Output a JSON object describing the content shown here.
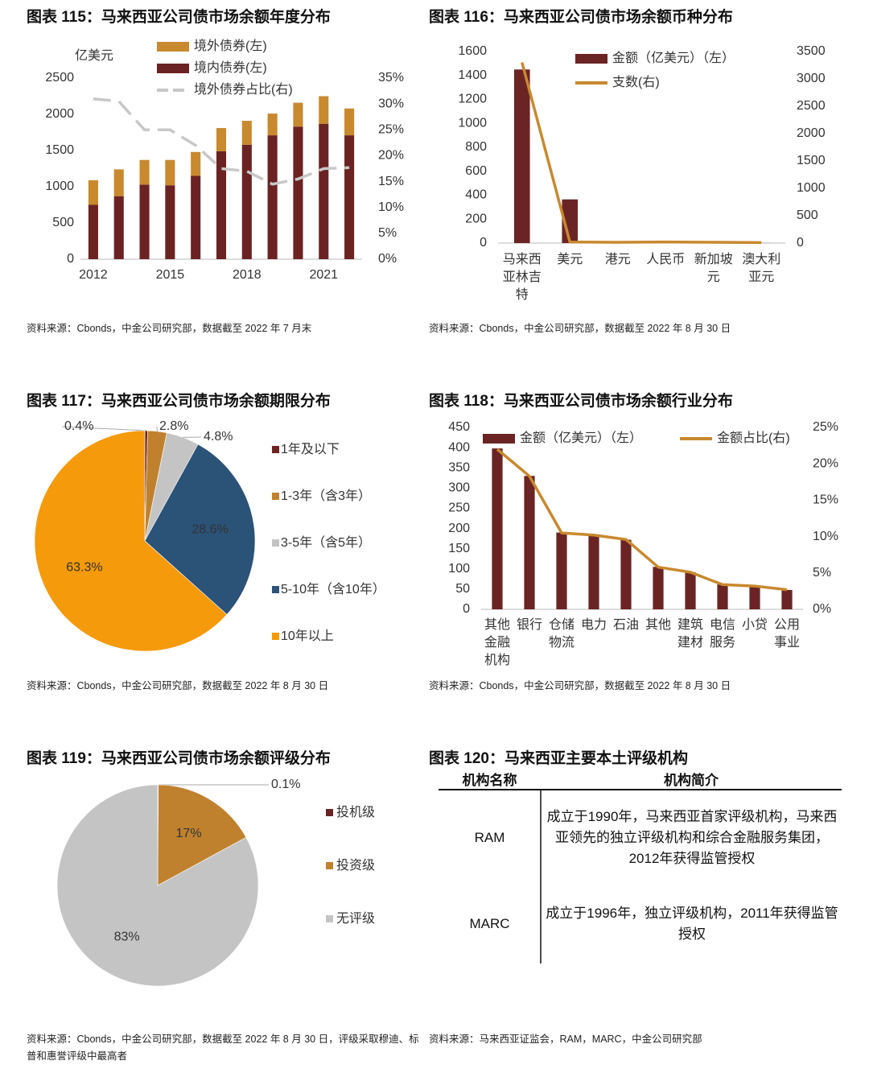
{
  "chart_data": [
    {
      "type": "bar",
      "title": "图表 115：马来西亚公司债市场余额年度分布",
      "y_label": "亿美元",
      "stacked": true,
      "categories": [
        "2012",
        null,
        null,
        "2015",
        null,
        null,
        "2018",
        null,
        null,
        "2021",
        null
      ],
      "series": [
        {
          "name": "境外债券(左)",
          "color": "#c8892f",
          "values": [
            340,
            370,
            340,
            350,
            330,
            320,
            330,
            300,
            330,
            380,
            370
          ]
        },
        {
          "name": "境内债券(左)",
          "color": "#6b2222",
          "values": [
            750,
            870,
            1030,
            1020,
            1150,
            1490,
            1580,
            1710,
            1830,
            1870,
            1710
          ]
        },
        {
          "name": "境外债券占比(右)",
          "type": "line",
          "line_style": "dashed",
          "axis": "y2",
          "color": "#c8c8c8",
          "values": [
            31,
            30.5,
            25,
            25,
            22,
            17.5,
            17,
            14.5,
            15.5,
            17.5,
            17.7
          ]
        }
      ],
      "ylim": [
        0,
        2500
      ],
      "yticks": [
        0,
        500,
        1000,
        1500,
        2000,
        2500
      ],
      "y2lim": [
        0,
        35
      ],
      "y2ticks": [
        {
          "value": 0,
          "label": "0%"
        },
        {
          "value": 5,
          "label": "5%"
        },
        {
          "value": 10,
          "label": "10%"
        },
        {
          "value": 15,
          "label": "15%"
        },
        {
          "value": 20,
          "label": "20%"
        },
        {
          "value": 25,
          "label": "25%"
        },
        {
          "value": 30,
          "label": "30%"
        },
        {
          "value": 35,
          "label": "35%"
        }
      ],
      "source": "资料来源：Cbonds，中金公司研究部，数据截至 2022 年 7 月末"
    },
    {
      "type": "bar",
      "title": "图表 116：马来西亚公司债市场余额币种分布",
      "categories": [
        "马来西亚林吉特",
        "美元",
        "港元",
        "人民币",
        "新加坡元",
        "澳大利亚元"
      ],
      "series": [
        {
          "name": "金额（亿美元）（左）",
          "color": "#6b2424",
          "values": [
            1450,
            365,
            2,
            3,
            2,
            1
          ]
        },
        {
          "name": "支数(右)",
          "type": "line",
          "axis": "y2",
          "color": "#c8892f",
          "values": [
            3300,
            20,
            15,
            20,
            15,
            10
          ]
        }
      ],
      "ylim": [
        0,
        1600
      ],
      "yticks": [
        0,
        200,
        400,
        600,
        800,
        1000,
        1200,
        1400,
        1600
      ],
      "y2lim": [
        0,
        3500
      ],
      "y2ticks": [
        0,
        500,
        1000,
        1500,
        2000,
        2500,
        3000,
        3500
      ],
      "source": "资料来源：Cbonds，中金公司研究部，数据截至 2022 年 8 月 30 日"
    },
    {
      "type": "pie",
      "title": "图表 117：马来西亚公司债市场余额期限分布",
      "categories": [
        "1年及以下",
        "1-3年（含3年）",
        "3-5年（含5年）",
        "5-10年（含10年）",
        "10年以上"
      ],
      "values": [
        0.4,
        2.8,
        4.8,
        28.6,
        63.3
      ],
      "value_labels": [
        "0.4%",
        "2.8%",
        "4.8%",
        "28.6%",
        "63.3%"
      ],
      "colors": [
        "#6b2222",
        "#c0812f",
        "#c4c4c4",
        "#2b5277",
        "#f59a0a"
      ],
      "source": "资料来源：Cbonds，中金公司研究部，数据截至 2022 年 8 月 30 日"
    },
    {
      "type": "bar",
      "title": "图表 118：马来西亚公司债市场余额行业分布",
      "categories": [
        "其他金融机构",
        "银行",
        "仓储物流",
        "电力",
        "石油",
        "其他",
        "建筑建材",
        "电信服务",
        "小贷",
        "公用事业"
      ],
      "series": [
        {
          "name": "金额（亿美元）（左）",
          "color": "#6b2424",
          "values": [
            398,
            330,
            190,
            183,
            172,
            105,
            92,
            62,
            58,
            48
          ]
        },
        {
          "name": "金额占比(右)",
          "type": "line",
          "axis": "y2",
          "color": "#c8892f",
          "values": [
            22,
            18.3,
            10.5,
            10.2,
            9.6,
            5.8,
            5.1,
            3.4,
            3.2,
            2.7
          ]
        }
      ],
      "ylim": [
        0,
        450
      ],
      "yticks": [
        0,
        50,
        100,
        150,
        200,
        250,
        300,
        350,
        400,
        450
      ],
      "y2lim": [
        0,
        25
      ],
      "y2ticks": [
        {
          "value": 0,
          "label": "0%"
        },
        {
          "value": 5,
          "label": "5%"
        },
        {
          "value": 10,
          "label": "10%"
        },
        {
          "value": 15,
          "label": "15%"
        },
        {
          "value": 20,
          "label": "20%"
        },
        {
          "value": 25,
          "label": "25%"
        }
      ],
      "source": "资料来源：Cbonds，中金公司研究部，数据截至 2022 年 8 月 30 日"
    },
    {
      "type": "pie",
      "title": "图表 119：马来西亚公司债市场余额评级分布",
      "categories": [
        "投机级",
        "投资级",
        "无评级"
      ],
      "values": [
        0.1,
        17,
        83
      ],
      "value_labels": [
        "0.1%",
        "17%",
        "83%"
      ],
      "colors": [
        "#6b2222",
        "#c0812f",
        "#c4c4c4"
      ],
      "source": "资料来源：Cbonds，中金公司研究部，数据截至 2022 年 8 月 30 日，评级采取穆迪、标普和惠誉评级中最高者"
    }
  ],
  "table": {
    "title": "图表 120：马来西亚主要本土评级机构",
    "header": [
      "机构名称",
      "机构简介"
    ],
    "rows": [
      [
        "RAM",
        "成立于1990年，马来西亚首家评级机构，马来西亚领先的独立评级机构和综合金融服务集团，2012年获得监管授权"
      ],
      [
        "MARC",
        "成立于1996年，独立评级机构，2011年获得监管授权"
      ]
    ],
    "source": "资料来源：马来西亚证监会，RAM，MARC，中金公司研究部"
  }
}
